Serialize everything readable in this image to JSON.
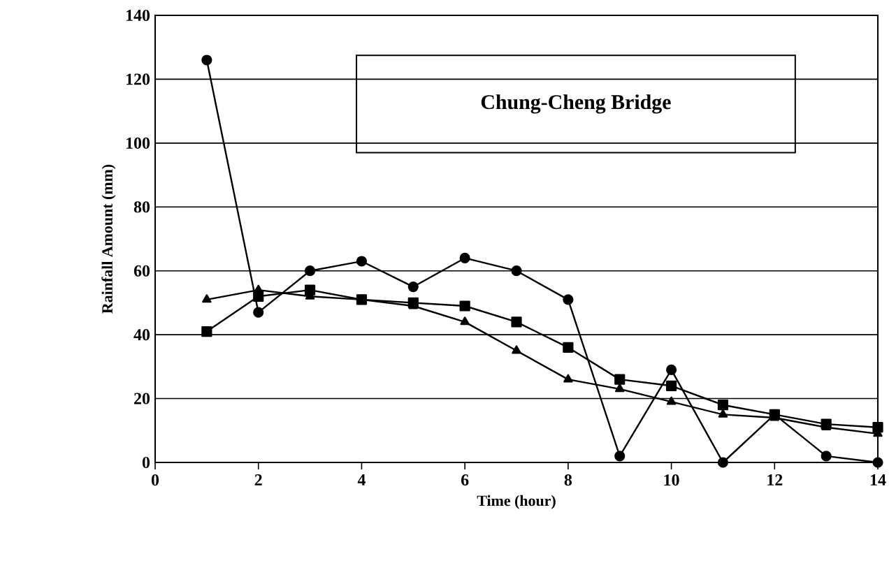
{
  "chart_data": {
    "type": "line",
    "xlabel": "Time (hour)",
    "ylabel": "Rainfall Amount (mm)",
    "annotations": [
      "Chung-Cheng Bridge"
    ],
    "x": [
      1,
      2,
      3,
      4,
      5,
      6,
      7,
      8,
      9,
      10,
      11,
      12,
      13,
      14
    ],
    "series": [
      {
        "color": "#000000",
        "marker": "circle",
        "values": [
          126,
          47,
          60,
          63,
          55,
          64,
          60,
          51,
          2,
          29,
          0,
          15,
          2,
          0
        ]
      },
      {
        "color": "#000000",
        "marker": "square",
        "values": [
          41,
          52,
          54,
          51,
          50,
          49,
          44,
          36,
          26,
          24,
          18,
          15,
          12,
          11
        ]
      },
      {
        "color": "#000000",
        "marker": "triangle",
        "values": [
          51,
          54,
          52,
          51,
          49,
          44,
          35,
          26,
          23,
          19,
          15,
          14,
          11,
          9
        ]
      }
    ],
    "xlim": [
      0,
      14
    ],
    "xticks": [
      0,
      2,
      4,
      6,
      8,
      10,
      12,
      14
    ],
    "ylim": [
      0,
      140
    ],
    "yticks": [
      0,
      20,
      40,
      60,
      80,
      100,
      120,
      140
    ],
    "grid": "y",
    "line_style": "solid"
  }
}
